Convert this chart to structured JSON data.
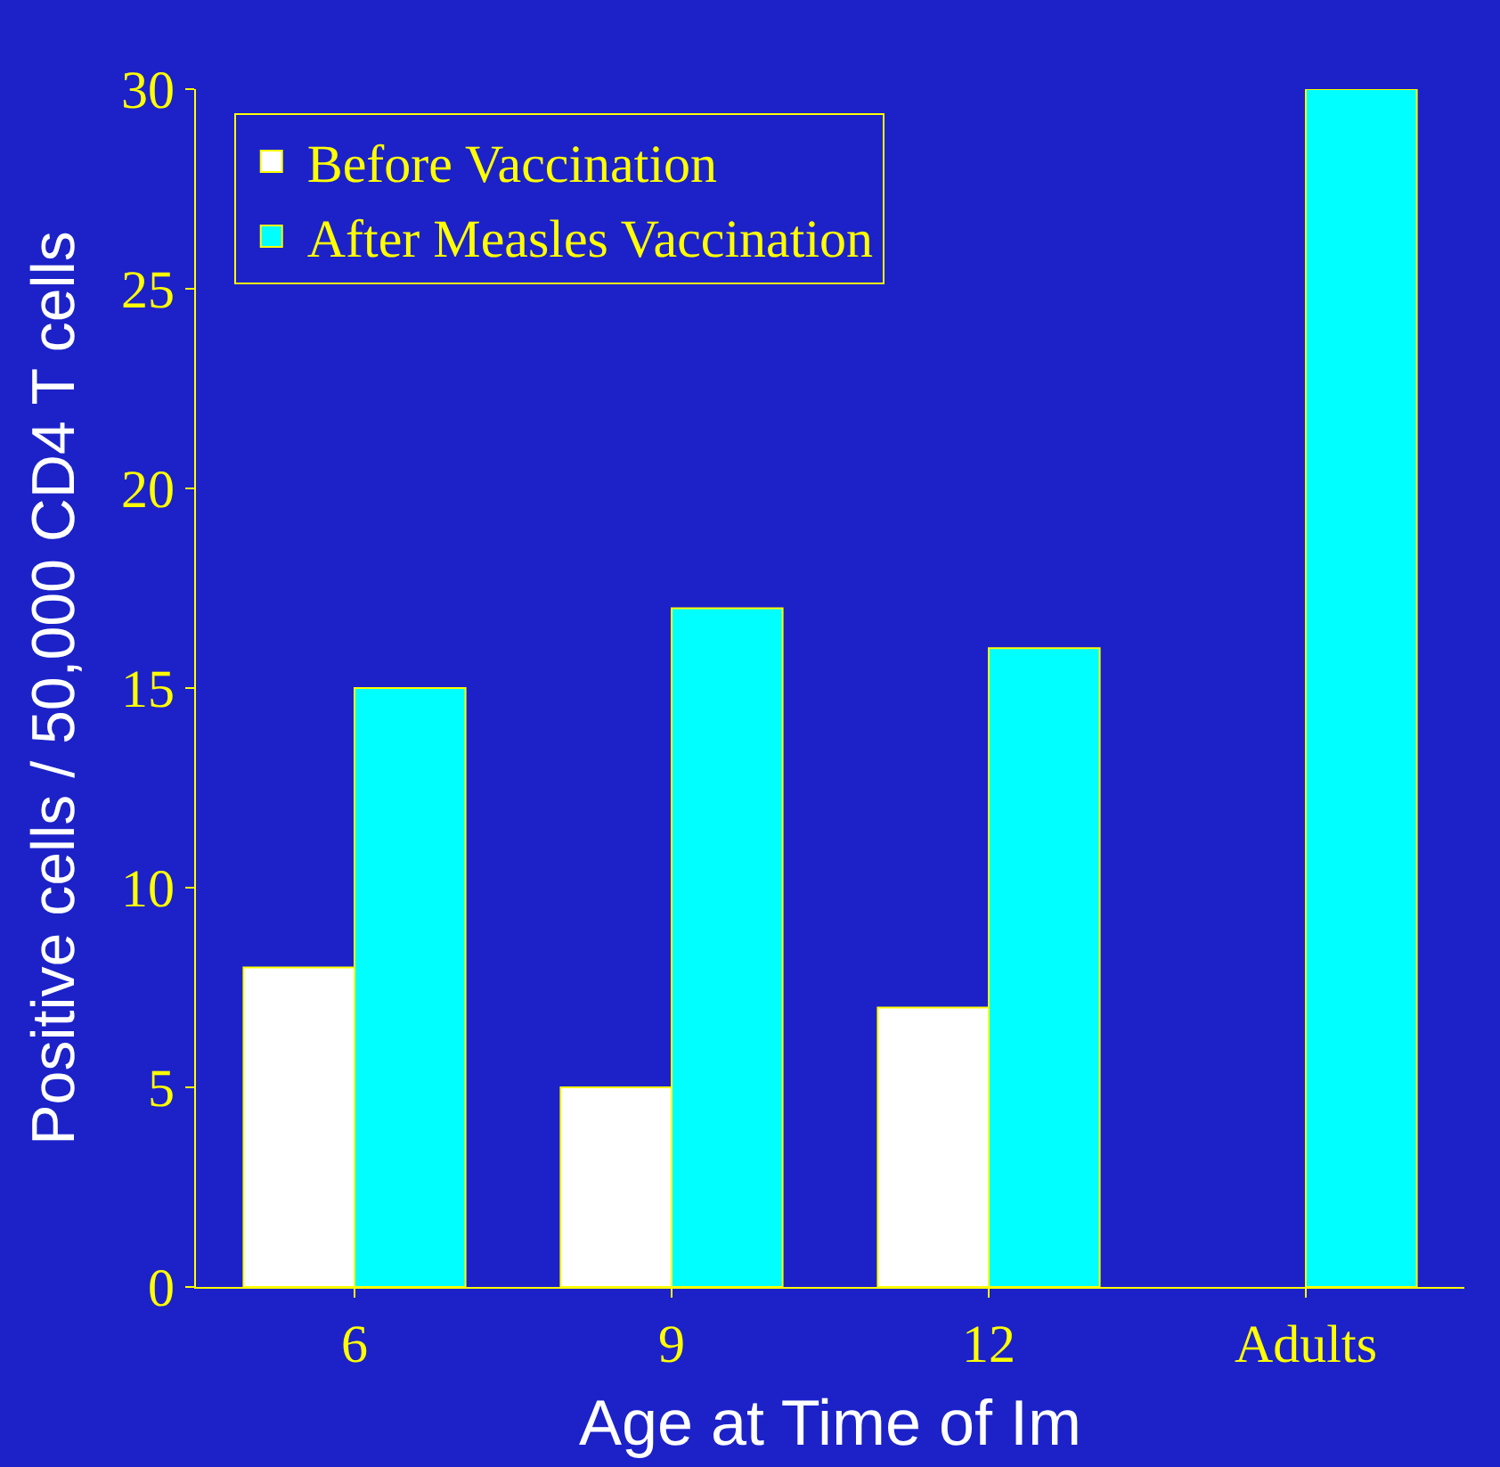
{
  "chart_data": {
    "type": "bar",
    "xlabel": "Age at Time of Im",
    "ylabel": "Positive cells / 50,000 CD4 T cells",
    "categories": [
      "6",
      "9",
      "12",
      "Adults"
    ],
    "series": [
      {
        "name": "Before Vaccination",
        "color": "#ffffff",
        "values": [
          8,
          5,
          7,
          null
        ]
      },
      {
        "name": "After Measles Vaccination",
        "color": "#00ffff",
        "values": [
          15,
          17,
          16,
          30
        ]
      }
    ],
    "ylim": [
      0,
      30
    ],
    "yticks": [
      0,
      5,
      10,
      15,
      20,
      25,
      30
    ],
    "grid": false,
    "legend": "top left"
  }
}
